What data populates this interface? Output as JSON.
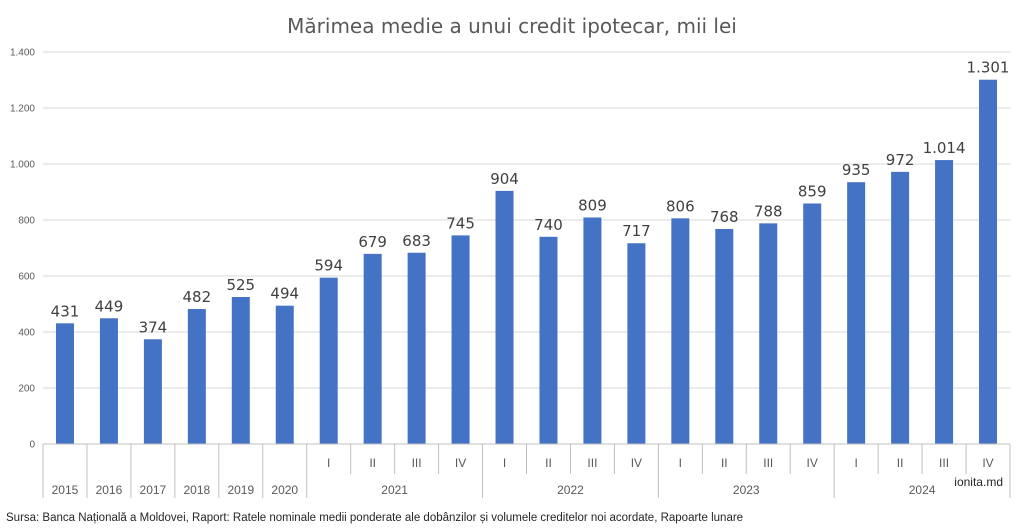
{
  "chart_data": {
    "type": "bar",
    "title": "Mărimea medie a unui credit ipotecar, mii lei",
    "categories": [
      {
        "label": "2015",
        "group": ""
      },
      {
        "label": "2016",
        "group": ""
      },
      {
        "label": "2017",
        "group": ""
      },
      {
        "label": "2018",
        "group": ""
      },
      {
        "label": "2019",
        "group": ""
      },
      {
        "label": "2020",
        "group": ""
      },
      {
        "label": "I",
        "group": "2021"
      },
      {
        "label": "II",
        "group": "2021"
      },
      {
        "label": "III",
        "group": "2021"
      },
      {
        "label": "IV",
        "group": "2021"
      },
      {
        "label": "I",
        "group": "2022"
      },
      {
        "label": "II",
        "group": "2022"
      },
      {
        "label": "III",
        "group": "2022"
      },
      {
        "label": "IV",
        "group": "2022"
      },
      {
        "label": "I",
        "group": "2023"
      },
      {
        "label": "II",
        "group": "2023"
      },
      {
        "label": "III",
        "group": "2023"
      },
      {
        "label": "IV",
        "group": "2023"
      },
      {
        "label": "I",
        "group": "2024"
      },
      {
        "label": "II",
        "group": "2024"
      },
      {
        "label": "III",
        "group": "2024"
      },
      {
        "label": "IV",
        "group": "2024"
      }
    ],
    "groups": [
      "2021",
      "2022",
      "2023",
      "2024"
    ],
    "values": [
      431,
      449,
      374,
      482,
      525,
      494,
      594,
      679,
      683,
      745,
      904,
      740,
      809,
      717,
      806,
      768,
      788,
      859,
      935,
      972,
      1014,
      1301
    ],
    "data_labels": [
      "431",
      "449",
      "374",
      "482",
      "525",
      "494",
      "594",
      "679",
      "683",
      "745",
      "904",
      "740",
      "809",
      "717",
      "806",
      "768",
      "788",
      "859",
      "935",
      "972",
      "1.014",
      "1.301"
    ],
    "ylim": [
      0,
      1400
    ],
    "yticks": [
      0,
      200,
      400,
      600,
      800,
      1000,
      1200,
      1400
    ],
    "ytick_labels": [
      "0",
      "200",
      "400",
      "600",
      "800",
      "1.000",
      "1.200",
      "1.400"
    ],
    "grid": true,
    "bar_color": "#4472C4"
  },
  "watermark": "ionita.md",
  "source_text": "Sursa: Banca Națională a Moldovei, Raport: Ratele nominale medii ponderate ale dobânzilor și volumele creditelor noi acordate, Rapoarte lunare"
}
